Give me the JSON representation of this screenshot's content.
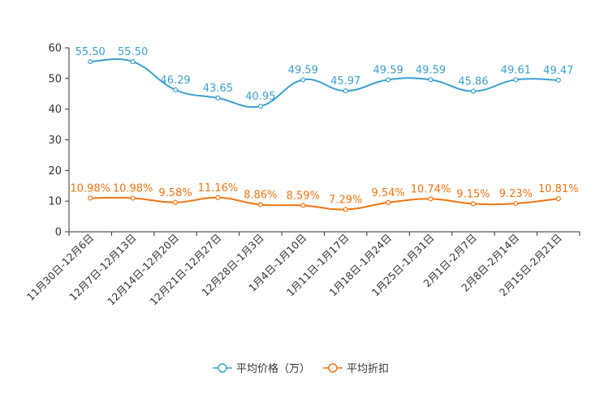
{
  "chart_data": {
    "type": "line",
    "title": "",
    "xlabel": "",
    "ylabel": "",
    "ylim": [
      0,
      60
    ],
    "yticks": [
      0,
      10,
      20,
      30,
      40,
      50,
      60
    ],
    "grid": false,
    "legend_position": "bottom-center",
    "categories": [
      "11月30日-12月6日",
      "12月7日-12月13日",
      "12月14日-12月20日",
      "12月21日-12月27日",
      "12月28日-1月3日",
      "1月4日-1月10日",
      "1月11日-1月17日",
      "1月18日-1月24日",
      "1月25日-1月31日",
      "2月1日-2月7日",
      "2月8日-2月14日",
      "2月15日-2月21日"
    ],
    "series": [
      {
        "name": "平均价格（万）",
        "color": "#3a9fd0",
        "values": [
          55.5,
          55.5,
          46.29,
          43.65,
          40.95,
          49.59,
          45.97,
          49.59,
          49.59,
          45.86,
          49.61,
          49.47
        ],
        "labels": [
          "55.50",
          "55.50",
          "46.29",
          "43.65",
          "40.95",
          "49.59",
          "45.97",
          "49.59",
          "49.59",
          "45.86",
          "49.61",
          "49.47"
        ]
      },
      {
        "name": "平均折扣",
        "color": "#f07410",
        "values": [
          10.98,
          10.98,
          9.58,
          11.16,
          8.86,
          8.59,
          7.29,
          9.54,
          10.74,
          9.15,
          9.23,
          10.81
        ],
        "labels": [
          "10.98%",
          "10.98%",
          "9.58%",
          "11.16%",
          "8.86%",
          "8.59%",
          "7.29%",
          "9.54%",
          "10.74%",
          "9.15%",
          "9.23%",
          "10.81%"
        ]
      }
    ]
  }
}
